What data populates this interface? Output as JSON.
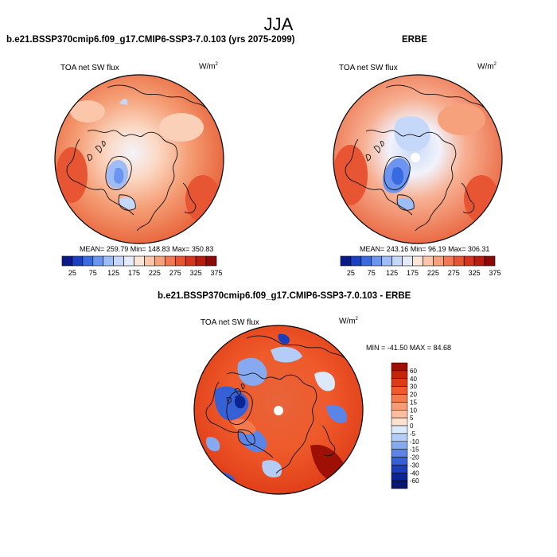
{
  "title": "JJA",
  "panels": [
    {
      "title": "b.e21.BSSP370cmip6.f09_g17.CMIP6-SSP3-7.0.103 (yrs 2075-2099)",
      "variable": "TOA net SW flux",
      "units_base": "W/m",
      "units_exp": "2",
      "stats": "MEAN= 259.79  Min= 148.83  Max= 350.83"
    },
    {
      "title": "ERBE",
      "variable": "TOA net SW flux",
      "units_base": "W/m",
      "units_exp": "2",
      "stats": "MEAN= 243.16  Min=  96.19  Max= 306.31"
    },
    {
      "title": "b.e21.BSSP370cmip6.f09_g17.CMIP6-SSP3-7.0.103 - ERBE",
      "variable": "TOA net SW flux",
      "units_base": "W/m",
      "units_exp": "2",
      "stats": "MIN = -41.50  MAX =  84.68"
    }
  ],
  "colorbar_abs": {
    "labels": [
      "25",
      "75",
      "125",
      "175",
      "225",
      "275",
      "325",
      "375"
    ],
    "colors": [
      "#0a1a86",
      "#1a3fc2",
      "#3a6ae0",
      "#6b95f0",
      "#9ebcf6",
      "#c6d8fa",
      "#e4ecfc",
      "#fce6d8",
      "#fbc6aa",
      "#f7a07c",
      "#f17a55",
      "#e85532",
      "#d5351d",
      "#b81c0f",
      "#8c0a06"
    ]
  },
  "colorbar_diff": {
    "labels": [
      "60",
      "40",
      "30",
      "20",
      "15",
      "10",
      "5",
      "0",
      "-5",
      "-10",
      "-15",
      "-20",
      "-30",
      "-40",
      "-60"
    ],
    "colors": [
      "#9e0f05",
      "#c4230c",
      "#de3a16",
      "#ef5a2a",
      "#f37a4c",
      "#f79b74",
      "#fbbd9e",
      "#fde0d0",
      "#dce8fb",
      "#b3cdf7",
      "#86a9f0",
      "#5a85e6",
      "#3560d6",
      "#1c3ebb",
      "#0b2594",
      "#0a1670"
    ]
  },
  "colors": {
    "land_outline": "#111111",
    "background": "#ffffff"
  }
}
